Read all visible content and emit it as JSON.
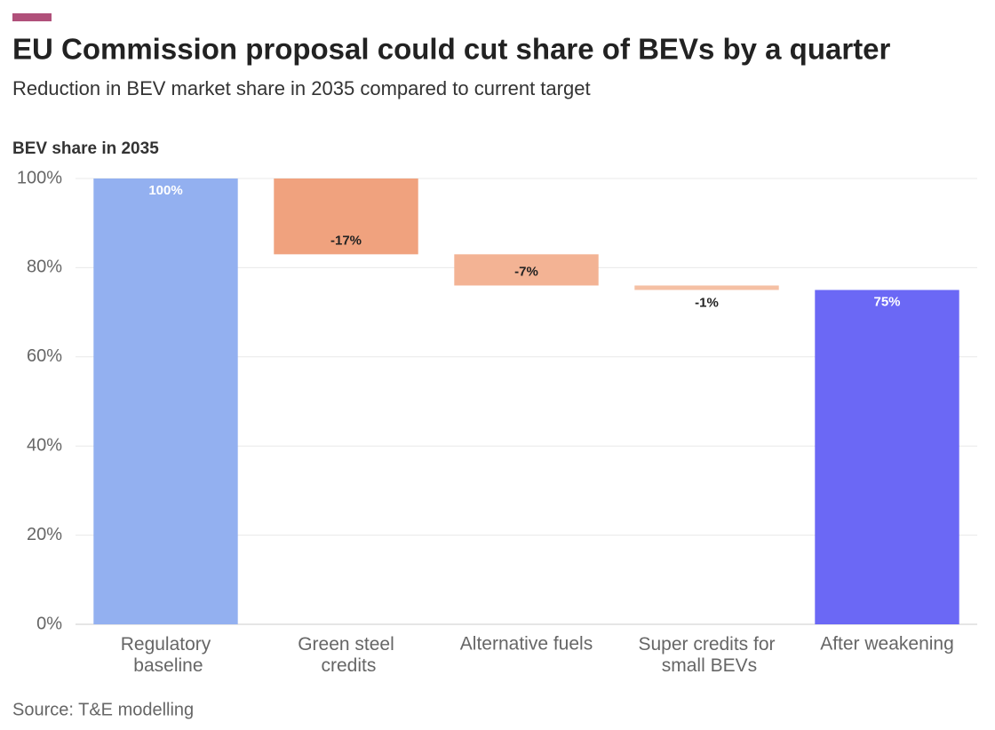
{
  "chart_data": {
    "type": "waterfall",
    "title": "EU Commission proposal could cut share of BEVs by a quarter",
    "subtitle": "Reduction in BEV market share in 2035 compared to current target",
    "y_label": "BEV share in 2035",
    "source": "Source: T&E modelling",
    "categories": [
      "Regulatory baseline",
      "Green steel credits",
      "Alternative fuels",
      "Super credits for small BEVs",
      "After weakening"
    ],
    "values": [
      100,
      -17,
      -7,
      -1,
      75
    ],
    "value_labels": [
      "100%",
      "-17%",
      "-7%",
      "-1%",
      "75%"
    ],
    "measure": [
      "absolute",
      "relative",
      "relative",
      "relative",
      "absolute"
    ],
    "colors": [
      "#93b0f0",
      "#f0a27e",
      "#f3b394",
      "#f5c0a4",
      "#6b68f5"
    ],
    "ylim": [
      0,
      100
    ],
    "yticks": [
      {
        "value": 0,
        "label": "0%"
      },
      {
        "value": 20,
        "label": "20%"
      },
      {
        "value": 40,
        "label": "40%"
      },
      {
        "value": 60,
        "label": "60%"
      },
      {
        "value": 80,
        "label": "80%"
      },
      {
        "value": 100,
        "label": "100%"
      }
    ],
    "grid": true
  }
}
